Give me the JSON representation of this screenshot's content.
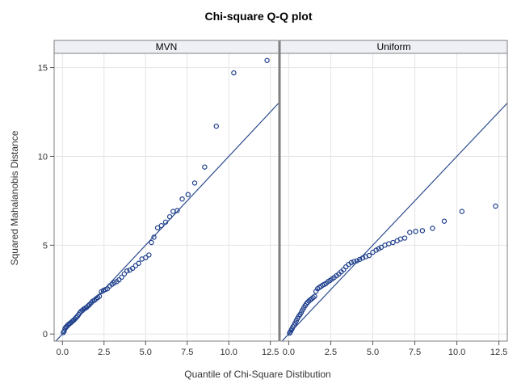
{
  "chart_data": {
    "type": "scatter",
    "title": "Chi-square Q-Q plot",
    "xlabel": "Quantile of Chi-Square Distibution",
    "ylabel": "Squared Mahalanobis Distance",
    "xlim": [
      -0.5,
      13.0
    ],
    "ylim": [
      -0.4,
      15.8
    ],
    "x_ticks": [
      "0.0",
      "2.5",
      "5.0",
      "7.5",
      "10.0",
      "12.5"
    ],
    "x_tick_values": [
      0,
      2.5,
      5,
      7.5,
      10,
      12.5
    ],
    "y_ticks": [
      "0",
      "5",
      "10",
      "15"
    ],
    "y_tick_values": [
      0,
      5,
      10,
      15
    ],
    "grid": true,
    "reference_line": {
      "slope": 1,
      "intercept": 0
    },
    "colors": {
      "points": "#1f3f8c",
      "line": "#2a4b8d",
      "header": "#eef0f5"
    },
    "panels": [
      {
        "label": "MVN",
        "points": [
          [
            0.05,
            0.08
          ],
          [
            0.1,
            0.15
          ],
          [
            0.15,
            0.3
          ],
          [
            0.2,
            0.38
          ],
          [
            0.25,
            0.42
          ],
          [
            0.32,
            0.5
          ],
          [
            0.38,
            0.55
          ],
          [
            0.45,
            0.6
          ],
          [
            0.52,
            0.65
          ],
          [
            0.6,
            0.72
          ],
          [
            0.68,
            0.78
          ],
          [
            0.75,
            0.85
          ],
          [
            0.82,
            0.92
          ],
          [
            0.9,
            1.0
          ],
          [
            0.98,
            1.1
          ],
          [
            1.05,
            1.2
          ],
          [
            1.12,
            1.28
          ],
          [
            1.2,
            1.33
          ],
          [
            1.28,
            1.4
          ],
          [
            1.36,
            1.45
          ],
          [
            1.45,
            1.5
          ],
          [
            1.54,
            1.58
          ],
          [
            1.62,
            1.65
          ],
          [
            1.72,
            1.75
          ],
          [
            1.82,
            1.85
          ],
          [
            1.92,
            1.9
          ],
          [
            2.02,
            1.98
          ],
          [
            2.12,
            2.05
          ],
          [
            2.22,
            2.12
          ],
          [
            2.34,
            2.38
          ],
          [
            2.46,
            2.45
          ],
          [
            2.58,
            2.5
          ],
          [
            2.7,
            2.55
          ],
          [
            2.84,
            2.7
          ],
          [
            2.98,
            2.8
          ],
          [
            3.12,
            2.88
          ],
          [
            3.26,
            2.95
          ],
          [
            3.4,
            3.05
          ],
          [
            3.56,
            3.2
          ],
          [
            3.72,
            3.38
          ],
          [
            3.88,
            3.55
          ],
          [
            4.05,
            3.6
          ],
          [
            4.22,
            3.7
          ],
          [
            4.4,
            3.85
          ],
          [
            4.58,
            3.98
          ],
          [
            4.78,
            4.22
          ],
          [
            5.0,
            4.3
          ],
          [
            5.2,
            4.45
          ],
          [
            5.35,
            5.15
          ],
          [
            5.5,
            5.45
          ],
          [
            5.72,
            5.98
          ],
          [
            5.95,
            6.1
          ],
          [
            6.2,
            6.3
          ],
          [
            6.45,
            6.6
          ],
          [
            6.65,
            6.9
          ],
          [
            6.9,
            6.95
          ],
          [
            7.2,
            7.6
          ],
          [
            7.55,
            7.85
          ],
          [
            7.95,
            8.5
          ],
          [
            8.55,
            9.4
          ],
          [
            9.25,
            11.7
          ],
          [
            10.3,
            14.7
          ],
          [
            12.3,
            15.4
          ]
        ]
      },
      {
        "label": "Uniform",
        "points": [
          [
            0.05,
            0.05
          ],
          [
            0.1,
            0.12
          ],
          [
            0.15,
            0.22
          ],
          [
            0.2,
            0.3
          ],
          [
            0.25,
            0.4
          ],
          [
            0.32,
            0.5
          ],
          [
            0.38,
            0.62
          ],
          [
            0.45,
            0.75
          ],
          [
            0.52,
            0.88
          ],
          [
            0.6,
            1.0
          ],
          [
            0.68,
            1.1
          ],
          [
            0.75,
            1.22
          ],
          [
            0.82,
            1.35
          ],
          [
            0.9,
            1.48
          ],
          [
            0.98,
            1.6
          ],
          [
            1.05,
            1.7
          ],
          [
            1.12,
            1.78
          ],
          [
            1.2,
            1.86
          ],
          [
            1.28,
            1.92
          ],
          [
            1.36,
            1.98
          ],
          [
            1.45,
            2.05
          ],
          [
            1.54,
            2.12
          ],
          [
            1.62,
            2.4
          ],
          [
            1.72,
            2.55
          ],
          [
            1.82,
            2.62
          ],
          [
            1.92,
            2.68
          ],
          [
            2.02,
            2.75
          ],
          [
            2.12,
            2.8
          ],
          [
            2.22,
            2.85
          ],
          [
            2.34,
            2.95
          ],
          [
            2.46,
            3.02
          ],
          [
            2.58,
            3.1
          ],
          [
            2.7,
            3.18
          ],
          [
            2.84,
            3.28
          ],
          [
            2.98,
            3.38
          ],
          [
            3.12,
            3.5
          ],
          [
            3.26,
            3.62
          ],
          [
            3.4,
            3.78
          ],
          [
            3.56,
            3.92
          ],
          [
            3.72,
            4.02
          ],
          [
            3.88,
            4.08
          ],
          [
            4.05,
            4.12
          ],
          [
            4.22,
            4.2
          ],
          [
            4.4,
            4.28
          ],
          [
            4.58,
            4.35
          ],
          [
            4.78,
            4.42
          ],
          [
            5.0,
            4.6
          ],
          [
            5.2,
            4.72
          ],
          [
            5.35,
            4.8
          ],
          [
            5.5,
            4.88
          ],
          [
            5.72,
            5.0
          ],
          [
            5.95,
            5.08
          ],
          [
            6.2,
            5.15
          ],
          [
            6.45,
            5.25
          ],
          [
            6.65,
            5.35
          ],
          [
            6.9,
            5.4
          ],
          [
            7.2,
            5.72
          ],
          [
            7.55,
            5.78
          ],
          [
            7.95,
            5.82
          ],
          [
            8.55,
            5.95
          ],
          [
            9.25,
            6.35
          ],
          [
            10.3,
            6.9
          ],
          [
            12.3,
            7.2
          ]
        ]
      }
    ]
  }
}
